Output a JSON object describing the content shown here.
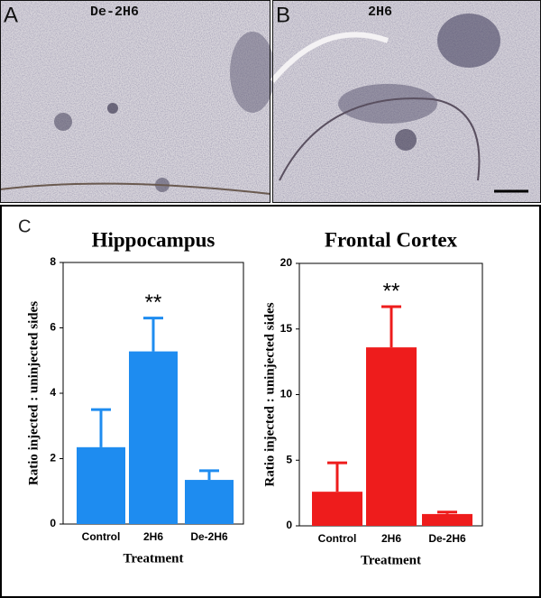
{
  "figure": {
    "panel_a_label": "A",
    "panel_a_title": "De-2H6",
    "panel_b_label": "B",
    "panel_b_title": "2H6",
    "panel_c_label": "C"
  },
  "chart_data": [
    {
      "type": "bar",
      "title": "Hippocampus",
      "x_label": "Treatment",
      "y_label": "Ratio injected : uninjected sides",
      "categories": [
        "Control",
        "2H6",
        "De-2H6"
      ],
      "values": [
        2.35,
        5.28,
        1.35
      ],
      "errors": [
        1.15,
        1.02,
        0.28
      ],
      "color": "#1e8cf0",
      "ylim": [
        0,
        8
      ],
      "yticks": [
        0,
        2,
        4,
        6,
        8
      ],
      "annotation": "**"
    },
    {
      "type": "bar",
      "title": "Frontal Cortex",
      "x_label": "Treatment",
      "y_label": "Ratio injected : uninjected sides",
      "categories": [
        "Control",
        "2H6",
        "De-2H6"
      ],
      "values": [
        2.6,
        13.6,
        0.9
      ],
      "errors": [
        2.2,
        3.1,
        0.15
      ],
      "color": "#ee1c1c",
      "ylim": [
        0,
        20
      ],
      "yticks": [
        0,
        5,
        10,
        15,
        20
      ],
      "annotation": "**"
    }
  ]
}
